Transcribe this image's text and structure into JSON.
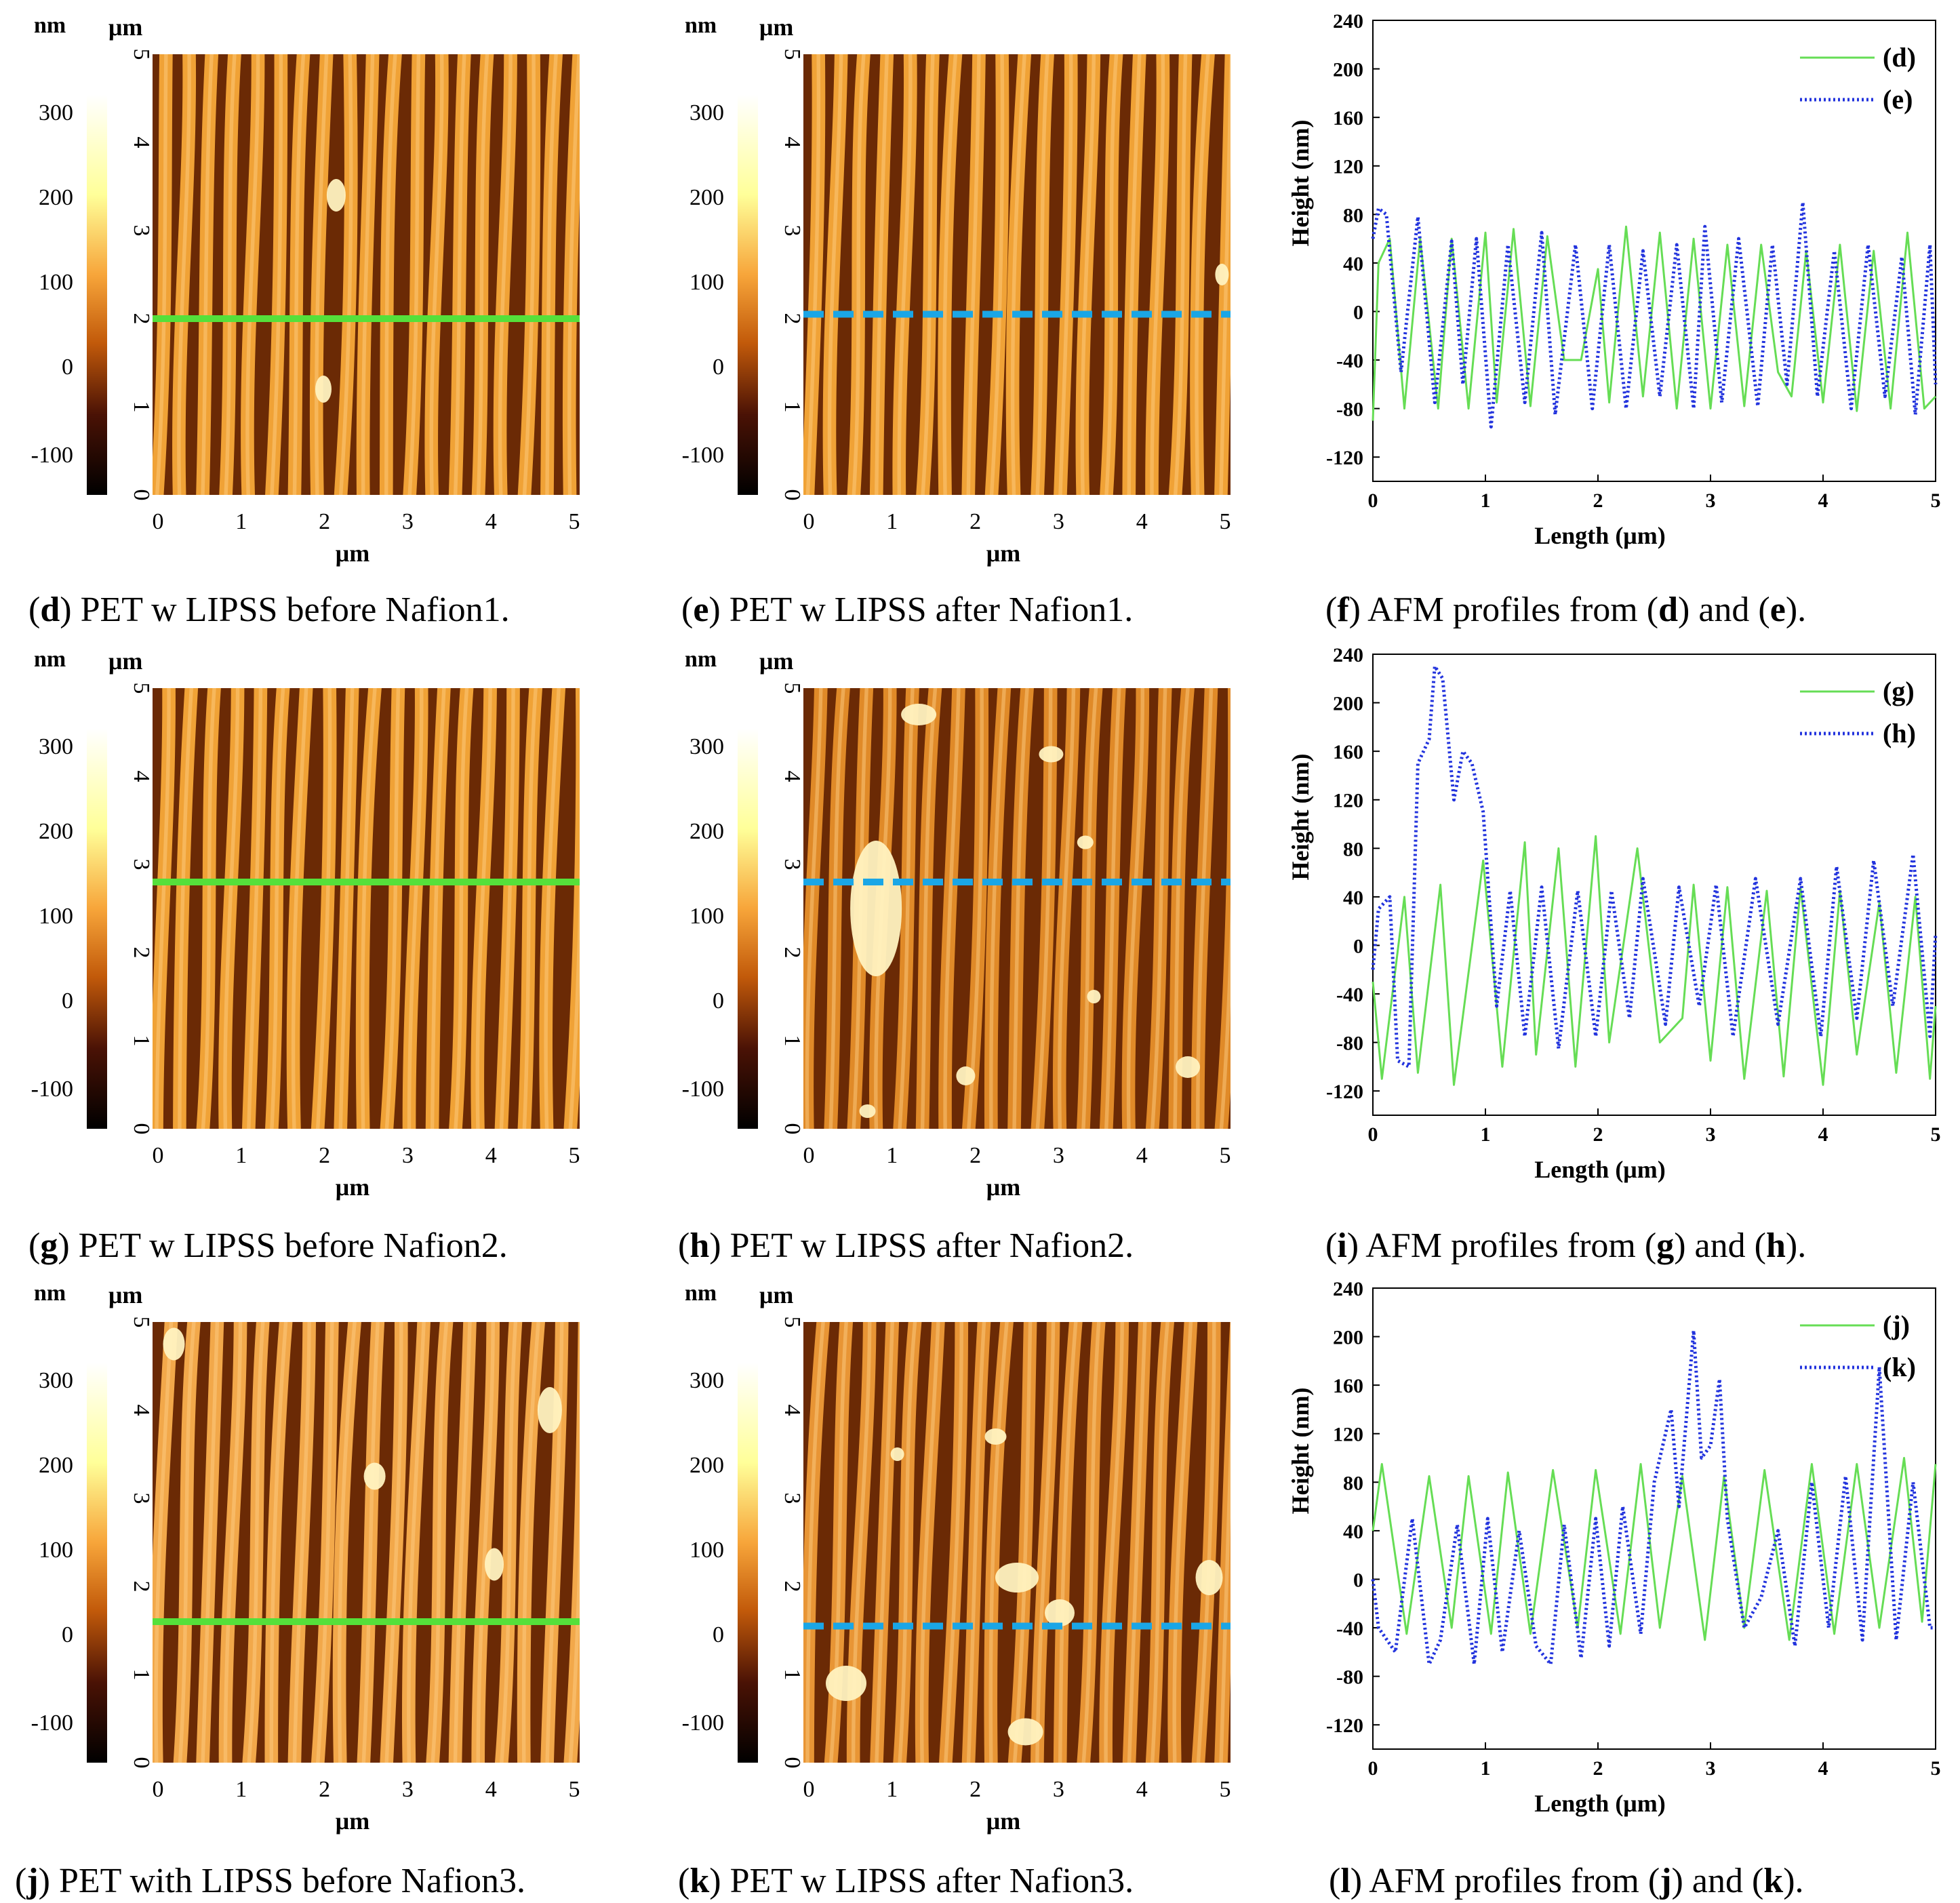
{
  "units": {
    "nm": "nm",
    "um": "μm",
    "length": "Length (μm)",
    "height": "Height (nm)"
  },
  "colorbar_ticks": [
    "300",
    "200",
    "100",
    "0",
    "-100"
  ],
  "side_ticks": [
    "5",
    "4",
    "3",
    "2",
    "1",
    "0"
  ],
  "x_ticks": [
    "0",
    "1",
    "2",
    "3",
    "4",
    "5"
  ],
  "colors": {
    "solid_line": "#55e03a",
    "dash_line": "#1aa6e6",
    "profile_solid": "#66dd55",
    "profile_dotted": "#2233dd",
    "ridge": "#f0a236",
    "groove": "#6b2a05"
  },
  "captions": {
    "d": {
      "letter": "d",
      "text": " PET w LIPSS before Nafion1."
    },
    "e": {
      "letter": "e",
      "text": " PET w LIPSS after Nafion1."
    },
    "f": {
      "letter": "f",
      "pre": " AFM profiles from ",
      "a": "d",
      "mid": " and ",
      "b": "e",
      "post": "."
    },
    "g": {
      "letter": "g",
      "text": " PET w LIPSS before Nafion2."
    },
    "h": {
      "letter": "h",
      "text": " PET w LIPSS after Nafion2."
    },
    "i": {
      "letter": "i",
      "pre": " AFM profiles from ",
      "a": "g",
      "mid": " and ",
      "b": "h",
      "post": "."
    },
    "j": {
      "letter": "j",
      "text": " PET with LIPSS before Nafion3."
    },
    "k": {
      "letter": "k",
      "text": " PET w LIPSS after Nafion3."
    },
    "l": {
      "letter": "l",
      "pre": " AFM profiles from ",
      "a": "j",
      "mid": " and ",
      "b": "k",
      "post": "."
    }
  },
  "chart_data": [
    {
      "id": "f",
      "type": "line",
      "xlabel": "Length (μm)",
      "ylabel": "Height (nm)",
      "xlim": [
        0,
        5
      ],
      "ylim": [
        -140,
        240
      ],
      "yticks": [
        -120,
        -80,
        -40,
        0,
        40,
        80,
        120,
        160,
        200,
        240
      ],
      "xticks": [
        0,
        1,
        2,
        3,
        4,
        5
      ],
      "legend": [
        "(d)",
        "(e)"
      ],
      "series": [
        {
          "name": "(d)",
          "style": "solid",
          "x": [
            0,
            0.05,
            0.15,
            0.28,
            0.42,
            0.58,
            0.7,
            0.85,
            1.0,
            1.1,
            1.25,
            1.4,
            1.55,
            1.7,
            1.85,
            2.0,
            2.1,
            2.25,
            2.4,
            2.55,
            2.7,
            2.85,
            3.0,
            3.15,
            3.3,
            3.45,
            3.6,
            3.72,
            3.85,
            4.0,
            4.15,
            4.3,
            4.45,
            4.6,
            4.75,
            4.9,
            5.0
          ],
          "y": [
            -90,
            40,
            60,
            -80,
            60,
            -80,
            60,
            -80,
            65,
            -75,
            68,
            -78,
            62,
            -40,
            -40,
            35,
            -75,
            70,
            -70,
            65,
            -80,
            60,
            -80,
            55,
            -78,
            55,
            -50,
            -70,
            50,
            -75,
            55,
            -82,
            50,
            -80,
            65,
            -80,
            -70
          ]
        },
        {
          "name": "(e)",
          "style": "dotted",
          "x": [
            0,
            0.05,
            0.12,
            0.25,
            0.4,
            0.55,
            0.7,
            0.8,
            0.92,
            1.05,
            1.2,
            1.35,
            1.5,
            1.62,
            1.8,
            1.95,
            2.1,
            2.25,
            2.4,
            2.55,
            2.7,
            2.85,
            2.95,
            3.1,
            3.25,
            3.42,
            3.55,
            3.68,
            3.82,
            3.95,
            4.1,
            4.25,
            4.4,
            4.55,
            4.7,
            4.82,
            4.95,
            5.0
          ],
          "y": [
            60,
            85,
            80,
            -50,
            78,
            -75,
            58,
            -60,
            60,
            -95,
            55,
            -75,
            65,
            -85,
            55,
            -80,
            55,
            -80,
            50,
            -70,
            55,
            -80,
            70,
            -75,
            60,
            -78,
            55,
            -60,
            90,
            -70,
            50,
            -80,
            55,
            -70,
            45,
            -85,
            55,
            -60
          ]
        }
      ]
    },
    {
      "id": "i",
      "type": "line",
      "xlabel": "Length (μm)",
      "ylabel": "Height (nm)",
      "xlim": [
        0,
        5
      ],
      "ylim": [
        -140,
        240
      ],
      "yticks": [
        -120,
        -80,
        -40,
        0,
        40,
        80,
        120,
        160,
        200,
        240
      ],
      "xticks": [
        0,
        1,
        2,
        3,
        4,
        5
      ],
      "legend": [
        "(g)",
        "(h)"
      ],
      "series": [
        {
          "name": "(g)",
          "style": "solid",
          "x": [
            0,
            0.08,
            0.28,
            0.4,
            0.6,
            0.72,
            0.98,
            1.15,
            1.35,
            1.45,
            1.65,
            1.8,
            1.98,
            2.1,
            2.35,
            2.55,
            2.75,
            2.85,
            3.0,
            3.15,
            3.3,
            3.5,
            3.65,
            3.8,
            4.0,
            4.15,
            4.3,
            4.5,
            4.65,
            4.82,
            4.95,
            5.0
          ],
          "y": [
            -30,
            -110,
            40,
            -105,
            50,
            -115,
            70,
            -100,
            85,
            -90,
            80,
            -100,
            90,
            -80,
            80,
            -80,
            -60,
            50,
            -95,
            48,
            -110,
            45,
            -108,
            48,
            -115,
            45,
            -90,
            35,
            -105,
            40,
            -110,
            -50
          ]
        },
        {
          "name": "(h)",
          "style": "dotted",
          "x": [
            0,
            0.05,
            0.15,
            0.22,
            0.32,
            0.4,
            0.5,
            0.55,
            0.62,
            0.72,
            0.8,
            0.88,
            0.98,
            1.1,
            1.22,
            1.35,
            1.5,
            1.65,
            1.82,
            1.98,
            2.12,
            2.28,
            2.4,
            2.6,
            2.72,
            2.9,
            3.05,
            3.2,
            3.4,
            3.6,
            3.8,
            3.98,
            4.12,
            4.3,
            4.45,
            4.62,
            4.8,
            4.95,
            5.0
          ],
          "y": [
            -20,
            30,
            40,
            -95,
            -100,
            150,
            170,
            230,
            220,
            120,
            160,
            150,
            110,
            -50,
            45,
            -75,
            48,
            -85,
            45,
            -75,
            45,
            -60,
            55,
            -65,
            48,
            -50,
            50,
            -75,
            55,
            -65,
            55,
            -75,
            65,
            -60,
            70,
            -50,
            75,
            -75,
            10
          ]
        }
      ]
    },
    {
      "id": "l",
      "type": "line",
      "xlabel": "Length (μm)",
      "ylabel": "Height (nm)",
      "xlim": [
        0,
        5
      ],
      "ylim": [
        -140,
        240
      ],
      "yticks": [
        -120,
        -80,
        -40,
        0,
        40,
        80,
        120,
        160,
        200,
        240
      ],
      "xticks": [
        0,
        1,
        2,
        3,
        4,
        5
      ],
      "legend": [
        "(j)",
        "(k)"
      ],
      "series": [
        {
          "name": "(j)",
          "style": "solid",
          "x": [
            0,
            0.08,
            0.3,
            0.5,
            0.7,
            0.85,
            1.05,
            1.2,
            1.4,
            1.6,
            1.82,
            1.98,
            2.2,
            2.38,
            2.55,
            2.75,
            2.95,
            3.12,
            3.3,
            3.48,
            3.7,
            3.9,
            4.1,
            4.3,
            4.5,
            4.72,
            4.88,
            5.0
          ],
          "y": [
            40,
            95,
            -45,
            85,
            -40,
            85,
            -45,
            88,
            -45,
            90,
            -40,
            90,
            -45,
            95,
            -40,
            85,
            -50,
            85,
            -40,
            90,
            -50,
            95,
            -45,
            95,
            -40,
            100,
            -35,
            95
          ]
        },
        {
          "name": "(k)",
          "style": "dotted",
          "x": [
            0,
            0.05,
            0.2,
            0.35,
            0.5,
            0.6,
            0.75,
            0.9,
            1.02,
            1.15,
            1.3,
            1.45,
            1.58,
            1.7,
            1.85,
            1.98,
            2.1,
            2.22,
            2.38,
            2.5,
            2.65,
            2.72,
            2.85,
            2.92,
            3.0,
            3.08,
            3.15,
            3.3,
            3.45,
            3.6,
            3.75,
            3.9,
            4.05,
            4.2,
            4.35,
            4.5,
            4.65,
            4.8,
            4.95,
            5.0
          ],
          "y": [
            0,
            -40,
            -60,
            50,
            -70,
            -50,
            45,
            -70,
            50,
            -60,
            40,
            -55,
            -70,
            45,
            -65,
            50,
            -55,
            60,
            -45,
            80,
            140,
            60,
            205,
            100,
            110,
            165,
            50,
            -40,
            -15,
            40,
            -55,
            80,
            -40,
            85,
            -50,
            175,
            -50,
            80,
            -40,
            -40
          ]
        }
      ]
    }
  ]
}
